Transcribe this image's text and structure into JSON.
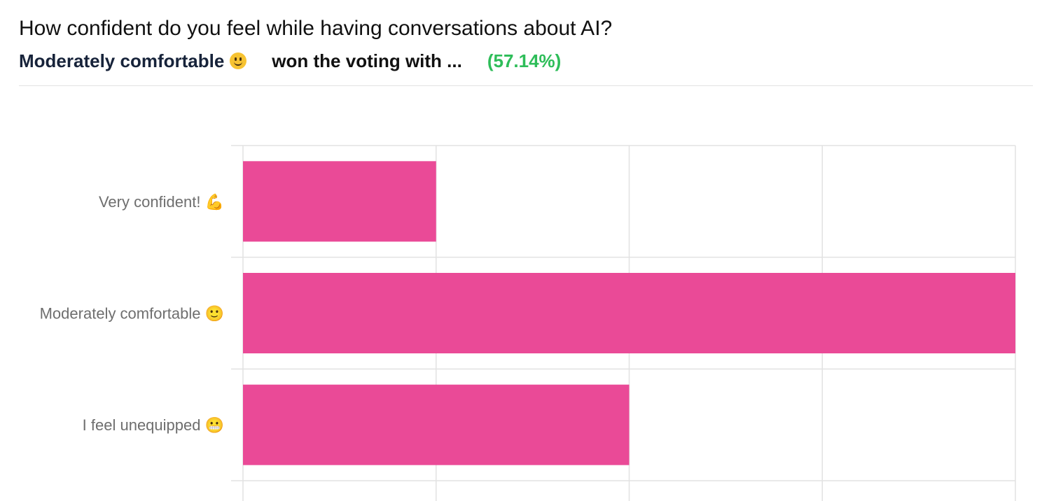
{
  "header": {
    "title": "How confident do you feel while having conversations about AI?",
    "winner_name": "Moderately comfortable",
    "winner_emoji": "slightly-smiling-face-icon",
    "winner_text": "won the voting with ...",
    "winner_percent": "(57.14%)",
    "percent_color": "#2ebd59"
  },
  "chart_data": {
    "type": "bar",
    "orientation": "horizontal",
    "categories": [
      "Very confident! 💪",
      "Moderately comfortable 🙂",
      "I feel unequipped 😬"
    ],
    "values": [
      1,
      4,
      2
    ],
    "xlim": [
      0,
      4
    ],
    "grid": true,
    "bar_color": "#ea4a97"
  }
}
